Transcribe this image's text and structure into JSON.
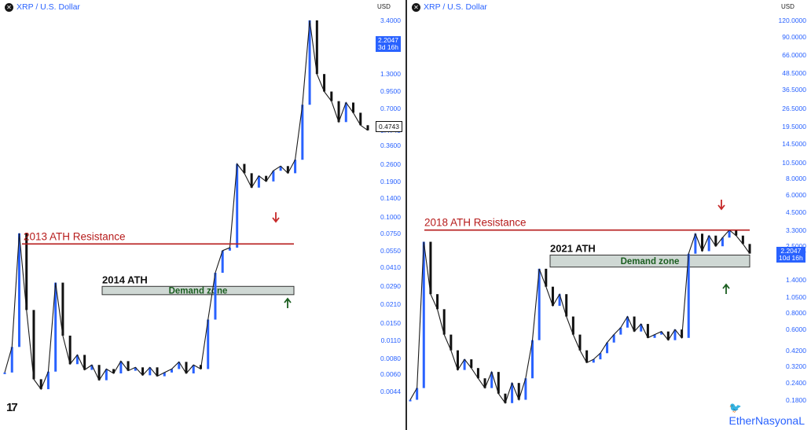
{
  "left": {
    "pair": "XRP / U.S. Dollar",
    "currency": "USD",
    "price_badge": {
      "price": "2.2047",
      "time": "3d 16h"
    },
    "marker_badge": "0.4743",
    "resistance_label": "2013 ATH Resistance",
    "ath_label": "2014 ATH",
    "demand_label": "Demand zone",
    "ticks": [
      "3.4000",
      "2.2047",
      "1.3000",
      "0.9500",
      "0.7000",
      "0.4743",
      "0.3600",
      "0.2600",
      "0.1900",
      "0.1400",
      "0.1000",
      "0.0750",
      "0.0550",
      "0.0410",
      "0.0290",
      "0.0210",
      "0.0150",
      "0.0110",
      "0.0080",
      "0.0060",
      "0.0044"
    ]
  },
  "right": {
    "pair": "XRP / U.S. Dollar",
    "currency": "USD",
    "price_badge": {
      "price": "2.2047",
      "time": "10d 16h"
    },
    "resistance_label": "2018 ATH Resistance",
    "ath_label": "2021 ATH",
    "demand_label": "Demand zone",
    "ticks": [
      "120.0000",
      "90.0000",
      "66.0000",
      "48.5000",
      "36.5000",
      "26.5000",
      "19.5000",
      "14.5000",
      "10.5000",
      "8.0000",
      "6.0000",
      "4.5000",
      "3.3000",
      "2.5000",
      "2.2047",
      "1.4000",
      "1.0500",
      "0.8000",
      "0.6000",
      "0.4200",
      "0.3200",
      "0.2400",
      "0.1800"
    ],
    "watermark": "EtherNasyonaL"
  },
  "colors": {
    "resistance": "#b71c1c",
    "zone_fill": "#cfd8d4",
    "zone_border": "#333333",
    "zone_text": "#1b5e20",
    "arrow_down": "#c62828",
    "arrow_up": "#1b5e20",
    "axis_text": "#2962ff"
  },
  "chart_data": [
    {
      "type": "line",
      "title": "XRP / U.S. Dollar",
      "ylabel": "USD",
      "yscale": "log",
      "x": [
        0,
        2,
        4,
        6,
        8,
        10,
        12,
        14,
        16,
        18,
        20,
        22,
        24,
        26,
        28,
        30,
        32,
        34,
        36,
        38,
        40,
        42,
        44,
        46,
        48,
        50,
        52,
        54,
        56,
        58,
        60,
        62,
        64,
        66,
        68,
        70,
        72,
        74,
        76,
        78,
        80,
        82,
        84,
        86,
        88,
        90,
        92,
        94,
        96,
        98,
        100
      ],
      "series": [
        {
          "values": [
            0.0062,
            0.0098,
            0.075,
            0.019,
            0.0055,
            0.0046,
            0.0063,
            0.031,
            0.012,
            0.0072,
            0.0085,
            0.0065,
            0.0071,
            0.0054,
            0.0066,
            0.0061,
            0.0076,
            0.0064,
            0.0068,
            0.0059,
            0.0068,
            0.0058,
            0.0062,
            0.0066,
            0.0075,
            0.0061,
            0.0071,
            0.0066,
            0.016,
            0.037,
            0.055,
            0.058,
            0.26,
            0.22,
            0.17,
            0.21,
            0.19,
            0.23,
            0.25,
            0.22,
            0.28,
            0.75,
            3.4,
            1.3,
            0.95,
            0.8,
            0.55,
            0.78,
            0.65,
            0.52,
            0.4743
          ]
        }
      ],
      "annotations": [
        "2013 ATH Resistance",
        "2014 ATH",
        "Demand zone"
      ],
      "resistance_value": 0.062,
      "demand_zone": [
        0.025,
        0.029
      ]
    },
    {
      "type": "line",
      "title": "XRP / U.S. Dollar",
      "ylabel": "USD",
      "yscale": "log",
      "x": [
        0,
        2,
        4,
        6,
        8,
        10,
        12,
        14,
        16,
        18,
        20,
        22,
        24,
        26,
        28,
        30,
        32,
        34,
        36,
        38,
        40,
        42,
        44,
        46,
        48,
        50,
        52,
        54,
        56,
        58,
        60,
        62,
        64,
        66,
        68,
        70,
        72,
        74,
        76,
        78,
        80,
        82,
        84,
        86,
        88,
        90,
        92,
        94,
        96,
        98,
        100
      ],
      "series": [
        {
          "values": [
            0.18,
            0.22,
            2.7,
            1.1,
            0.85,
            0.55,
            0.42,
            0.3,
            0.36,
            0.31,
            0.26,
            0.22,
            0.29,
            0.2,
            0.17,
            0.24,
            0.18,
            0.26,
            0.5,
            1.7,
            1.25,
            0.9,
            1.1,
            0.75,
            0.55,
            0.42,
            0.34,
            0.36,
            0.4,
            0.48,
            0.55,
            0.62,
            0.75,
            0.58,
            0.66,
            0.52,
            0.55,
            0.58,
            0.5,
            0.6,
            0.52,
            2.2,
            3.1,
            2.3,
            3.0,
            2.5,
            2.9,
            3.3,
            3.0,
            2.6,
            2.2047
          ]
        }
      ],
      "annotations": [
        "2018 ATH Resistance",
        "2021 ATH",
        "Demand zone"
      ],
      "resistance_value": 3.3,
      "demand_zone": [
        1.75,
        2.15
      ]
    }
  ]
}
